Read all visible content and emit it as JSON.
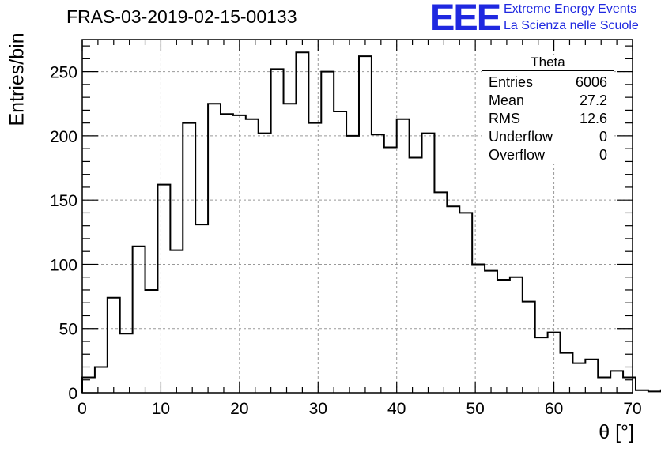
{
  "header": {
    "title": "FRAS-03-2019-02-15-00133",
    "logo_mark": "EEE",
    "logo_line1": "Extreme Energy Events",
    "logo_line2": "La Scienza nelle Scuole"
  },
  "stats": {
    "title": "Theta",
    "rows": [
      {
        "label": "Entries",
        "value": "6006"
      },
      {
        "label": "Mean",
        "value": "27.2"
      },
      {
        "label": "RMS",
        "value": "12.6"
      },
      {
        "label": "Underflow",
        "value": "0"
      },
      {
        "label": "Overflow",
        "value": "0"
      }
    ]
  },
  "chart_data": {
    "type": "bar",
    "histogram": true,
    "title": "FRAS-03-2019-02-15-00133",
    "xlabel": "θ [°]",
    "ylabel": "Entries/bin",
    "xlim": [
      0,
      70
    ],
    "ylim": [
      0,
      275
    ],
    "grid": true,
    "line_color": "#000000",
    "x_ticks": [
      0,
      10,
      20,
      30,
      40,
      50,
      60,
      70
    ],
    "y_ticks": [
      0,
      50,
      100,
      150,
      200,
      250
    ],
    "bin_width": 1.6,
    "bin_start": 0,
    "values": [
      12,
      20,
      74,
      46,
      114,
      80,
      162,
      111,
      210,
      131,
      225,
      217,
      216,
      213,
      202,
      252,
      225,
      265,
      210,
      250,
      219,
      200,
      262,
      201,
      191,
      213,
      183,
      202,
      156,
      145,
      140,
      100,
      95,
      88,
      90,
      71,
      43,
      47,
      31,
      23,
      26,
      12,
      17,
      12,
      2,
      1,
      2,
      0,
      0
    ]
  }
}
